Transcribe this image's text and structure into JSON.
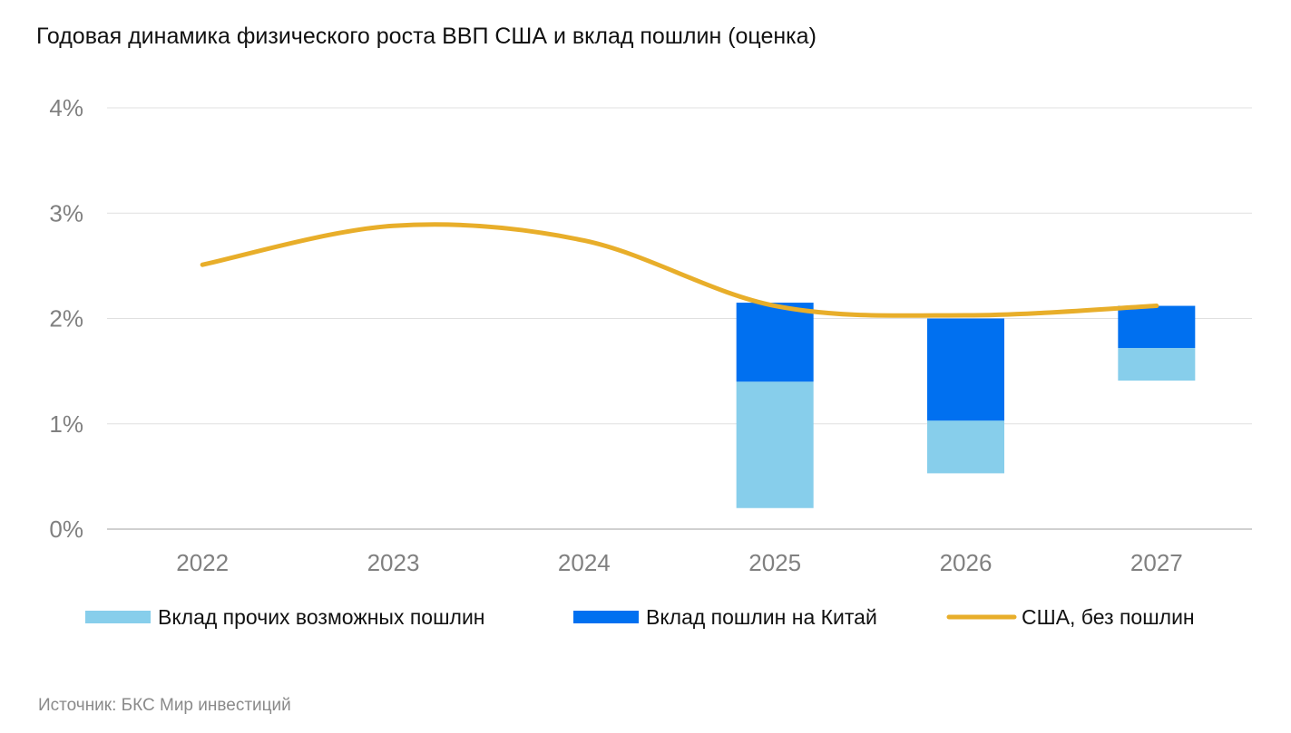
{
  "title": "Годовая динамика физического роста ВВП США и вклад пошлин (оценка)",
  "source": "Источник: БКС Мир инвестиций",
  "chart_data": {
    "type": "bar",
    "title": "Годовая динамика физического роста ВВП США и вклад пошлин (оценка)",
    "categories": [
      "2022",
      "2023",
      "2024",
      "2025",
      "2026",
      "2027"
    ],
    "ylim": [
      0,
      4
    ],
    "yticks": [
      "0%",
      "1%",
      "2%",
      "3%",
      "4%"
    ],
    "grid": true,
    "legend_placement": "bottom",
    "series": [
      {
        "name": "Вклад прочих возможных пошлин",
        "kind": "floating-bar",
        "color": "#87CEEB",
        "ranges": [
          null,
          null,
          null,
          [
            0.2,
            1.4
          ],
          [
            0.53,
            1.03
          ],
          [
            1.41,
            1.72
          ]
        ]
      },
      {
        "name": "Вклад пошлин на Китай",
        "kind": "floating-bar",
        "color": "#0070F0",
        "ranges": [
          null,
          null,
          null,
          [
            1.4,
            2.15
          ],
          [
            1.03,
            2.0
          ],
          [
            1.72,
            2.12
          ]
        ]
      },
      {
        "name": "США, без пошлин",
        "kind": "line",
        "color": "#E8AE2A",
        "values": [
          2.51,
          2.88,
          2.74,
          2.12,
          2.03,
          2.12
        ]
      }
    ]
  }
}
